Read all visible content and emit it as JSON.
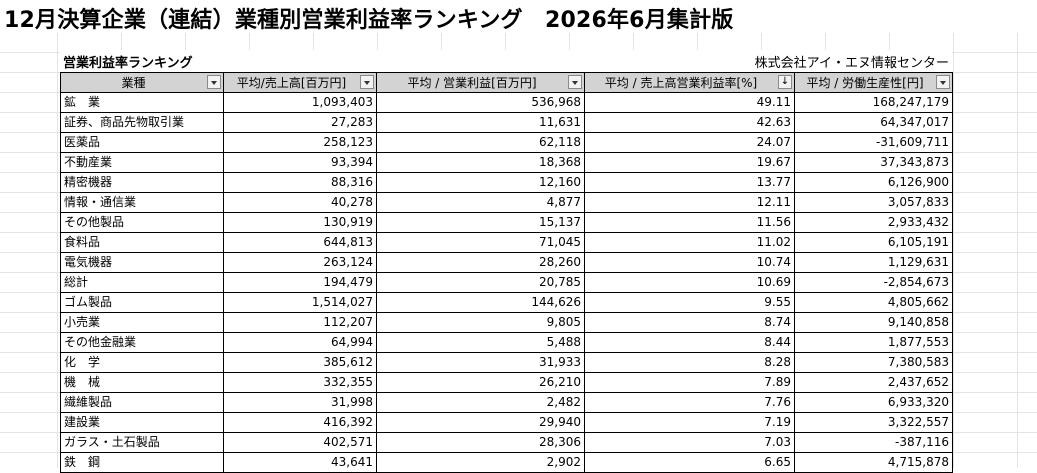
{
  "title": "12月決算企業（連結）業種別営業利益率ランキング　2026年6月集計版",
  "subtitle": "営業利益率ランキング",
  "company": "株式会社アイ・エヌ情報センター",
  "headers": [
    {
      "label": "業種",
      "icon": "filter-dropdown-icon"
    },
    {
      "label": "平均/売上高[百万円]",
      "icon": "filter-dropdown-icon"
    },
    {
      "label": "平均 / 営業利益[百万円]",
      "icon": "filter-dropdown-icon"
    },
    {
      "label": "平均 / 売上高営業利益率[%]",
      "icon": "sort-descending-icon",
      "glyph": "↓"
    },
    {
      "label": "平均 / 労働生産性[円]",
      "icon": "filter-dropdown-icon"
    }
  ],
  "rows": [
    {
      "name": "鉱　業",
      "sales": "1,093,403",
      "profit": "536,968",
      "margin": "49.11",
      "productivity": "168,247,179"
    },
    {
      "name": "証券、商品先物取引業",
      "sales": "27,283",
      "profit": "11,631",
      "margin": "42.63",
      "productivity": "64,347,017"
    },
    {
      "name": "医薬品",
      "sales": "258,123",
      "profit": "62,118",
      "margin": "24.07",
      "productivity": "-31,609,711"
    },
    {
      "name": "不動産業",
      "sales": "93,394",
      "profit": "18,368",
      "margin": "19.67",
      "productivity": "37,343,873"
    },
    {
      "name": "精密機器",
      "sales": "88,316",
      "profit": "12,160",
      "margin": "13.77",
      "productivity": "6,126,900"
    },
    {
      "name": "情報・通信業",
      "sales": "40,278",
      "profit": "4,877",
      "margin": "12.11",
      "productivity": "3,057,833"
    },
    {
      "name": "その他製品",
      "sales": "130,919",
      "profit": "15,137",
      "margin": "11.56",
      "productivity": "2,933,432"
    },
    {
      "name": "食料品",
      "sales": "644,813",
      "profit": "71,045",
      "margin": "11.02",
      "productivity": "6,105,191"
    },
    {
      "name": "電気機器",
      "sales": "263,124",
      "profit": "28,260",
      "margin": "10.74",
      "productivity": "1,129,631"
    },
    {
      "name": "総計",
      "sales": "194,479",
      "profit": "20,785",
      "margin": "10.69",
      "productivity": "-2,854,673"
    },
    {
      "name": "ゴム製品",
      "sales": "1,514,027",
      "profit": "144,626",
      "margin": "9.55",
      "productivity": "4,805,662"
    },
    {
      "name": "小売業",
      "sales": "112,207",
      "profit": "9,805",
      "margin": "8.74",
      "productivity": "9,140,858"
    },
    {
      "name": "その他金融業",
      "sales": "64,994",
      "profit": "5,488",
      "margin": "8.44",
      "productivity": "1,877,553"
    },
    {
      "name": "化　学",
      "sales": "385,612",
      "profit": "31,933",
      "margin": "8.28",
      "productivity": "7,380,583"
    },
    {
      "name": "機　械",
      "sales": "332,355",
      "profit": "26,210",
      "margin": "7.89",
      "productivity": "2,437,652"
    },
    {
      "name": "繊維製品",
      "sales": "31,998",
      "profit": "2,482",
      "margin": "7.76",
      "productivity": "6,933,320"
    },
    {
      "name": "建設業",
      "sales": "416,392",
      "profit": "29,940",
      "margin": "7.19",
      "productivity": "3,322,557"
    },
    {
      "name": "ガラス・土石製品",
      "sales": "402,571",
      "profit": "28,306",
      "margin": "7.03",
      "productivity": "-387,116"
    },
    {
      "name": "鉄　鋼",
      "sales": "43,641",
      "profit": "2,902",
      "margin": "6.65",
      "productivity": "4,715,878"
    }
  ]
}
